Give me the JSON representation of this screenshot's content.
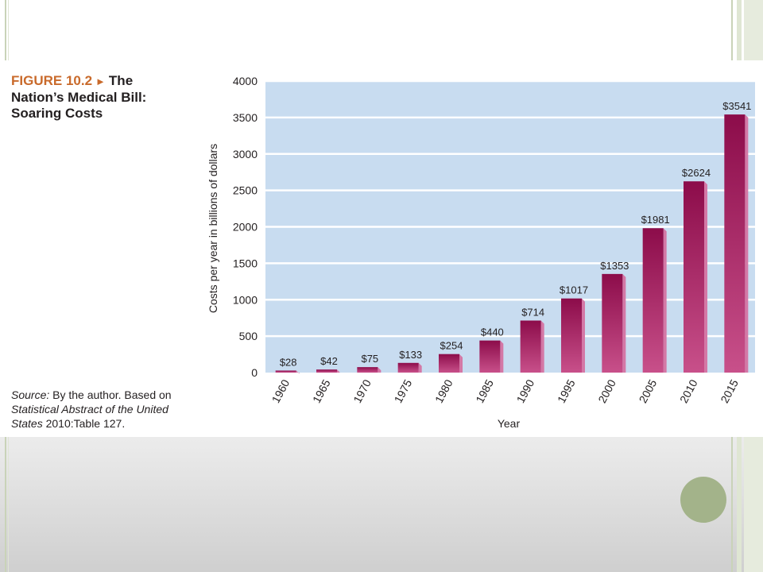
{
  "figure": {
    "label": "FIGURE 10.2",
    "title": "The Nation’s Medical Bill: Soaring Costs",
    "source_label": "Source:",
    "source_text_1": "By the author. Based on",
    "source_italic": "Statistical Abstract of the United States",
    "source_text_2": "2010:Table 127."
  },
  "chart_data": {
    "type": "bar",
    "categories": [
      "1960",
      "1965",
      "1970",
      "1975",
      "1980",
      "1985",
      "1990",
      "1995",
      "2000",
      "2005",
      "2010",
      "2015"
    ],
    "values": [
      28,
      42,
      75,
      133,
      254,
      440,
      714,
      1017,
      1353,
      1981,
      2624,
      3541
    ],
    "data_labels": [
      "$28",
      "$42",
      "$75",
      "$133",
      "$254",
      "$440",
      "$714",
      "$1017",
      "$1353",
      "$1981",
      "$2624",
      "$3541"
    ],
    "yticks": [
      0,
      500,
      1000,
      1500,
      2000,
      2500,
      3000,
      3500,
      4000
    ],
    "ylim": [
      0,
      4000
    ],
    "xlabel": "Year",
    "ylabel": "Costs per year in billions of dollars",
    "grid": true,
    "colors": {
      "plot_bg": "#c8dcf0",
      "gridline": "#ffffff",
      "bar_front_top": "#8c0c4a",
      "bar_front_bottom": "#c8508a",
      "bar_side": "#d478a6"
    }
  }
}
